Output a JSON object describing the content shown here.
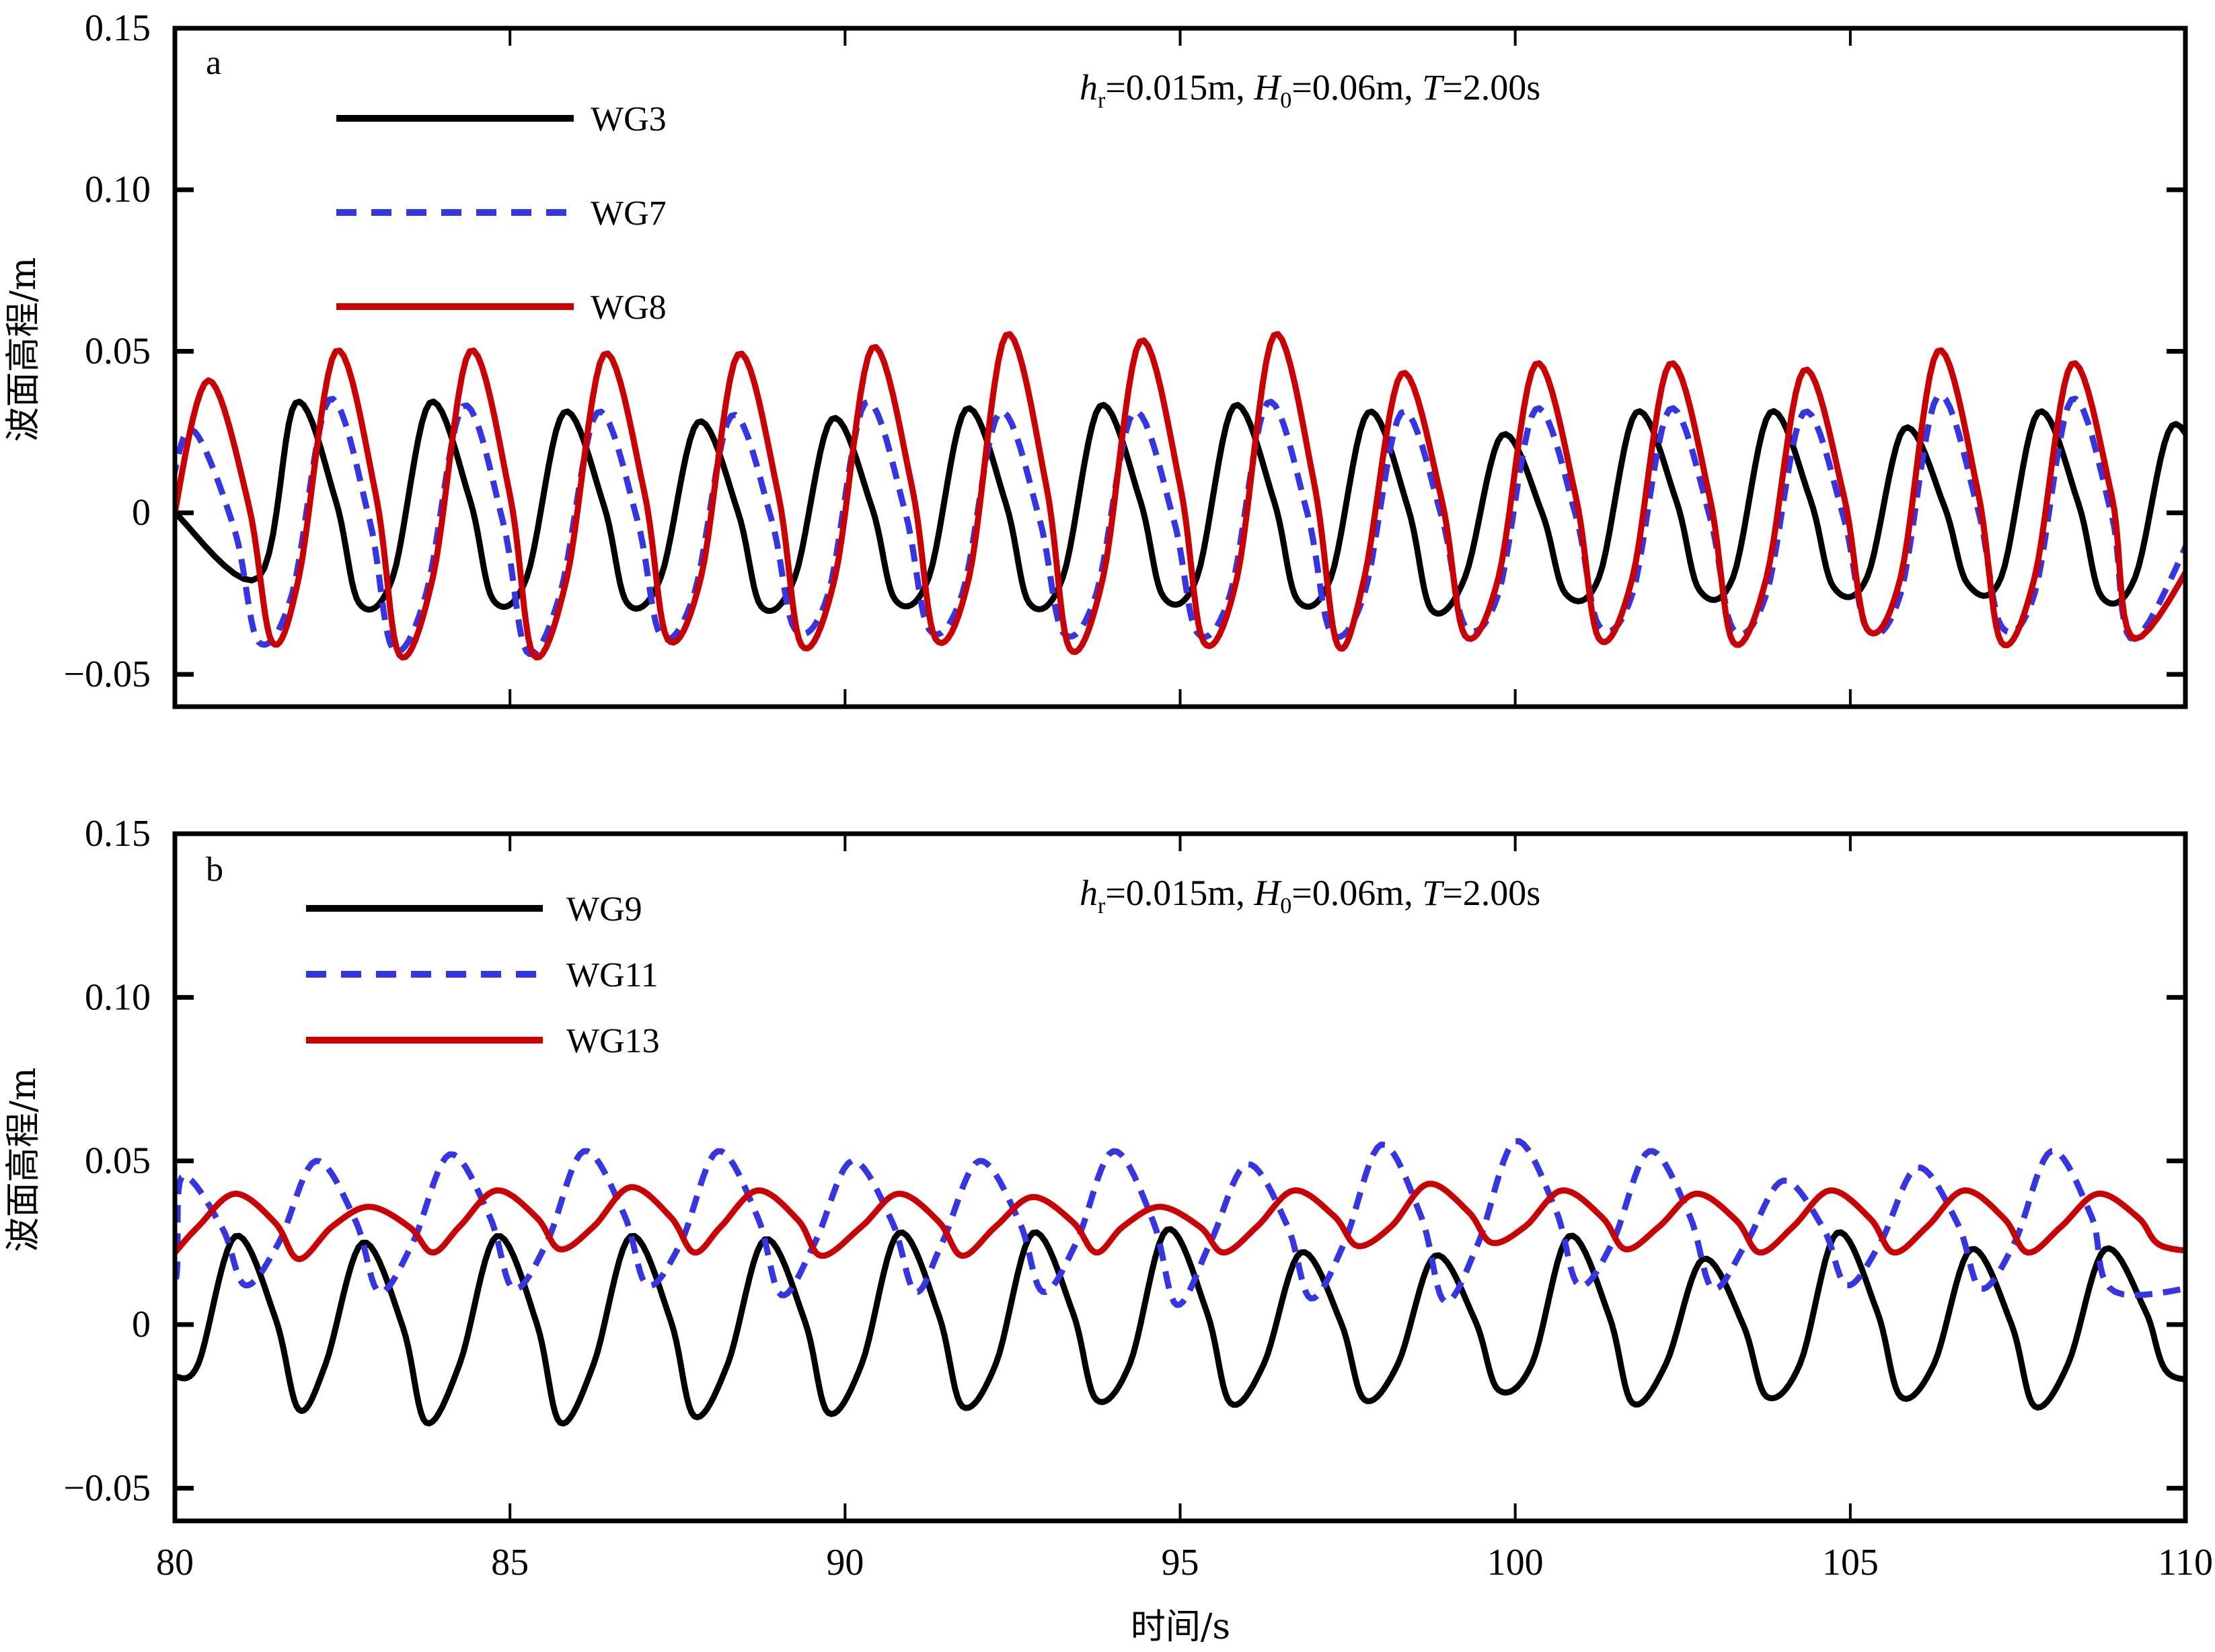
{
  "chart_data": [
    {
      "type": "line",
      "panel_label": "a",
      "annotation": {
        "h_sym": "h",
        "h_sub": "r",
        "h_val": "=0.015m, ",
        "H_sym": "H",
        "H_sub": "0",
        "H_val": "=0.06m, ",
        "T_sym": "T",
        "T_val": "=2.00s"
      },
      "xlabel": "时间/s",
      "ylabel": "波面高程/m",
      "xlim": [
        80,
        110
      ],
      "ylim": [
        -0.06,
        0.15
      ],
      "xticks": [
        80,
        85,
        90,
        95,
        100,
        105,
        110
      ],
      "xtick_labels": [
        "80",
        "85",
        "90",
        "95",
        "100",
        "105",
        "110"
      ],
      "yticks": [
        -0.05,
        0,
        0.05,
        0.1,
        0.15
      ],
      "ytick_labels": [
        "−0.05",
        "0",
        "0.05",
        "0.10",
        "0.15"
      ],
      "legend_position": "top-left",
      "series": [
        {
          "name": "WG3",
          "color": "#000000",
          "dash": "solid",
          "peak_times": [
            81.8,
            83.8,
            85.8,
            87.8,
            89.8,
            91.8,
            93.8,
            95.8,
            97.8,
            99.8,
            101.8,
            103.8,
            105.8,
            107.8,
            109.8
          ],
          "peaks": [
            0.034,
            0.034,
            0.031,
            0.028,
            0.029,
            0.032,
            0.033,
            0.033,
            0.031,
            0.024,
            0.031,
            0.031,
            0.026,
            0.031,
            0.027
          ],
          "troughs": [
            -0.028,
            -0.027,
            -0.028,
            -0.029,
            -0.027,
            -0.028,
            -0.026,
            -0.027,
            -0.03,
            -0.025,
            -0.024,
            -0.023,
            -0.022,
            -0.026,
            -0.017
          ],
          "shoulder": -0.02,
          "start_value": 0.0
        },
        {
          "name": "WG7",
          "color": "#3535e8",
          "dash": "dashed",
          "peak_times": [
            80.3,
            82.3,
            84.3,
            86.3,
            88.3,
            90.3,
            92.3,
            94.3,
            96.3,
            98.3,
            100.3,
            102.3,
            104.3,
            106.3,
            108.3
          ],
          "peaks": [
            0.025,
            0.035,
            0.033,
            0.031,
            0.03,
            0.034,
            0.031,
            0.031,
            0.034,
            0.031,
            0.032,
            0.032,
            0.031,
            0.036,
            0.035
          ],
          "troughs": [
            -0.04,
            -0.042,
            -0.043,
            -0.038,
            -0.036,
            -0.036,
            -0.037,
            -0.037,
            -0.037,
            -0.035,
            -0.035,
            -0.036,
            -0.036,
            -0.035,
            -0.039
          ],
          "shoulder": -0.025,
          "start_value": 0.013
        },
        {
          "name": "WG8",
          "color": "#cc0000",
          "dash": "solid",
          "peak_times": [
            80.5,
            82.4,
            84.4,
            86.4,
            88.4,
            90.4,
            92.4,
            94.4,
            96.4,
            98.3,
            100.3,
            102.3,
            104.3,
            106.3,
            108.3
          ],
          "peaks": [
            0.041,
            0.05,
            0.05,
            0.049,
            0.049,
            0.051,
            0.055,
            0.053,
            0.055,
            0.043,
            0.046,
            0.046,
            0.044,
            0.05,
            0.046
          ],
          "troughs": [
            -0.04,
            -0.044,
            -0.044,
            -0.039,
            -0.041,
            -0.039,
            -0.042,
            -0.04,
            -0.041,
            -0.038,
            -0.039,
            -0.04,
            -0.036,
            -0.04,
            -0.039
          ],
          "shoulder": -0.02,
          "start_value": 0.0
        }
      ]
    },
    {
      "type": "line",
      "panel_label": "b",
      "annotation": {
        "h_sym": "h",
        "h_sub": "r",
        "h_val": "=0.015m, ",
        "H_sym": "H",
        "H_sub": "0",
        "H_val": "=0.06m, ",
        "T_sym": "T",
        "T_val": "=2.00s"
      },
      "xlabel": "时间/s",
      "ylabel": "波面高程/m",
      "xlim": [
        80,
        110
      ],
      "ylim": [
        -0.06,
        0.15
      ],
      "xticks": [
        80,
        85,
        90,
        95,
        100,
        105,
        110
      ],
      "xtick_labels": [
        "80",
        "85",
        "90",
        "95",
        "100",
        "105",
        "110"
      ],
      "yticks": [
        -0.05,
        0,
        0.05,
        0.1,
        0.15
      ],
      "ytick_labels": [
        "−0.05",
        "0",
        "0.05",
        "0.10",
        "0.15"
      ],
      "legend_position": "top-left",
      "series": [
        {
          "name": "WG9",
          "color": "#000000",
          "dash": "solid",
          "peak_times": [
            80.9,
            82.8,
            84.8,
            86.8,
            88.8,
            90.8,
            92.8,
            94.8,
            96.8,
            98.8,
            100.8,
            102.8,
            104.8,
            106.8,
            108.8
          ],
          "peaks": [
            0.027,
            0.025,
            0.027,
            0.027,
            0.026,
            0.028,
            0.028,
            0.029,
            0.022,
            0.021,
            0.027,
            0.02,
            0.028,
            0.023,
            0.023
          ],
          "troughs": [
            -0.026,
            -0.03,
            -0.03,
            -0.028,
            -0.027,
            -0.025,
            -0.023,
            -0.024,
            -0.023,
            -0.02,
            -0.024,
            -0.022,
            -0.022,
            -0.025,
            -0.015
          ],
          "shoulder": -0.012,
          "start_value": -0.016
        },
        {
          "name": "WG11",
          "color": "#3535e8",
          "dash": "dashed",
          "peak_times": [
            80.1,
            82.1,
            84.1,
            86.1,
            88.1,
            90.1,
            92.0,
            94.0,
            96.0,
            98.0,
            100.0,
            102.0,
            104.0,
            106.0,
            108.0
          ],
          "peaks": [
            0.045,
            0.05,
            0.052,
            0.053,
            0.053,
            0.05,
            0.05,
            0.053,
            0.049,
            0.055,
            0.056,
            0.053,
            0.044,
            0.048,
            0.053
          ],
          "troughs": [
            0.012,
            0.01,
            0.011,
            0.012,
            0.009,
            0.01,
            0.01,
            0.006,
            0.008,
            0.007,
            0.012,
            0.011,
            0.012,
            0.011,
            0.01
          ],
          "shoulder": 0.025,
          "start_value": 0.013
        },
        {
          "name": "WG13",
          "color": "#cc0000",
          "dash": "solid",
          "peak_times": [
            80.9,
            82.9,
            84.8,
            86.8,
            88.7,
            90.8,
            92.8,
            94.7,
            96.7,
            98.7,
            100.7,
            102.7,
            104.7,
            106.7,
            108.7
          ],
          "peaks": [
            0.04,
            0.036,
            0.041,
            0.042,
            0.041,
            0.04,
            0.039,
            0.036,
            0.041,
            0.043,
            0.041,
            0.04,
            0.041,
            0.041,
            0.04
          ],
          "troughs": [
            0.02,
            0.022,
            0.023,
            0.022,
            0.021,
            0.021,
            0.022,
            0.022,
            0.024,
            0.025,
            0.023,
            0.022,
            0.022,
            0.022,
            0.024
          ],
          "shoulder": 0.03,
          "start_value": 0.022
        }
      ]
    }
  ]
}
